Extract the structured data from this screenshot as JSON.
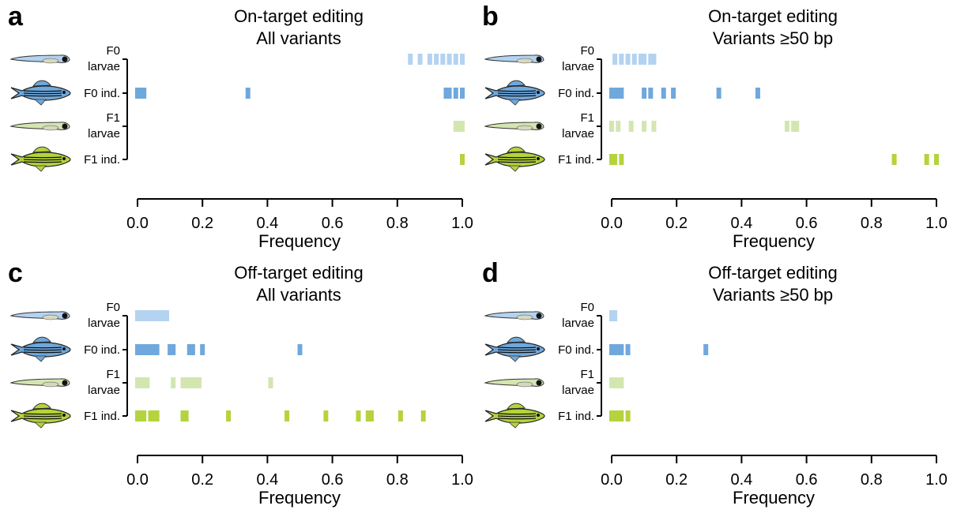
{
  "chart_data": [
    {
      "type": "strip",
      "panel": "a",
      "title": "On-target editing",
      "subtitle": "All variants",
      "xlabel": "Frequency",
      "xlim": [
        0,
        1
      ],
      "xticks": [
        {
          "value": 0,
          "label": "0.0"
        },
        0.2,
        0.4,
        0.6,
        0.8,
        {
          "value": 1,
          "label": "1.0"
        }
      ],
      "series": [
        {
          "name": "F0\nlarvae",
          "color": "#b3d3f0",
          "values": [
            0.84,
            0.87,
            0.9,
            0.92,
            0.94,
            0.96,
            0.98,
            1.0
          ]
        },
        {
          "name": "F0 ind.",
          "color": "#6fa8dc",
          "values": [
            0.0,
            0.01,
            0.02,
            0.34,
            0.95,
            0.96,
            0.98,
            1.0
          ]
        },
        {
          "name": "F1\nlarvae",
          "color": "#d3e6b0",
          "values": [
            0.98,
            0.99,
            1.0
          ]
        },
        {
          "name": "F1 ind.",
          "color": "#b5d33d",
          "values": [
            1.0
          ]
        }
      ]
    },
    {
      "type": "strip",
      "panel": "b",
      "title": "On-target editing",
      "subtitle": "Variants ≥50 bp",
      "xlabel": "Frequency",
      "xlim": [
        0,
        1
      ],
      "xticks": [
        {
          "value": 0,
          "label": "0.0"
        },
        0.2,
        0.4,
        0.6,
        0.8,
        {
          "value": 1,
          "label": "1.0"
        }
      ],
      "series": [
        {
          "name": "F0\nlarvae",
          "color": "#b3d3f0",
          "values": [
            0.01,
            0.03,
            0.05,
            0.07,
            0.09,
            0.1,
            0.12,
            0.13
          ]
        },
        {
          "name": "F0 ind.",
          "color": "#6fa8dc",
          "values": [
            0.0,
            0.01,
            0.02,
            0.03,
            0.1,
            0.12,
            0.16,
            0.19,
            0.33,
            0.45
          ]
        },
        {
          "name": "F1\nlarvae",
          "color": "#d3e6b0",
          "values": [
            0.0,
            0.02,
            0.06,
            0.1,
            0.13,
            0.54,
            0.56,
            0.57
          ]
        },
        {
          "name": "F1 ind.",
          "color": "#b5d33d",
          "values": [
            0.0,
            0.01,
            0.03,
            0.87,
            0.97,
            1.0
          ]
        }
      ]
    },
    {
      "type": "strip",
      "panel": "c",
      "title": "Off-target editing",
      "subtitle": "All variants",
      "xlabel": "Frequency",
      "xlim": [
        0,
        1
      ],
      "xticks": [
        {
          "value": 0,
          "label": "0.0"
        },
        0.2,
        0.4,
        0.6,
        0.8,
        {
          "value": 1,
          "label": "1.0"
        }
      ],
      "series": [
        {
          "name": "F0\nlarvae",
          "color": "#b3d3f0",
          "values": [
            0.0,
            0.01,
            0.02,
            0.03,
            0.04,
            0.05,
            0.06,
            0.07,
            0.08,
            0.09
          ]
        },
        {
          "name": "F0 ind.",
          "color": "#6fa8dc",
          "values": [
            0.0,
            0.01,
            0.02,
            0.03,
            0.04,
            0.05,
            0.06,
            0.1,
            0.11,
            0.16,
            0.17,
            0.2,
            0.5
          ]
        },
        {
          "name": "F1\nlarvae",
          "color": "#d3e6b0",
          "values": [
            0.0,
            0.01,
            0.02,
            0.03,
            0.11,
            0.14,
            0.15,
            0.16,
            0.17,
            0.18,
            0.19,
            0.41
          ]
        },
        {
          "name": "F1 ind.",
          "color": "#b5d33d",
          "values": [
            0.0,
            0.01,
            0.02,
            0.04,
            0.05,
            0.06,
            0.14,
            0.15,
            0.28,
            0.46,
            0.58,
            0.68,
            0.71,
            0.72,
            0.81,
            0.88
          ]
        }
      ]
    },
    {
      "type": "strip",
      "panel": "d",
      "title": "Off-target editing",
      "subtitle": "Variants ≥50 bp",
      "xlabel": "Frequency",
      "xlim": [
        0,
        1
      ],
      "xticks": [
        {
          "value": 0,
          "label": "0.0"
        },
        0.2,
        0.4,
        0.6,
        0.8,
        {
          "value": 1,
          "label": "1.0"
        }
      ],
      "series": [
        {
          "name": "F0\nlarvae",
          "color": "#b3d3f0",
          "values": [
            0.0,
            0.01
          ]
        },
        {
          "name": "F0 ind.",
          "color": "#6fa8dc",
          "values": [
            0.0,
            0.01,
            0.02,
            0.03,
            0.05,
            0.29
          ]
        },
        {
          "name": "F1\nlarvae",
          "color": "#d3e6b0",
          "values": [
            0.0,
            0.01,
            0.02,
            0.03
          ]
        },
        {
          "name": "F1 ind.",
          "color": "#b5d33d",
          "values": [
            0.0,
            0.01,
            0.02,
            0.03,
            0.05
          ]
        }
      ]
    }
  ]
}
